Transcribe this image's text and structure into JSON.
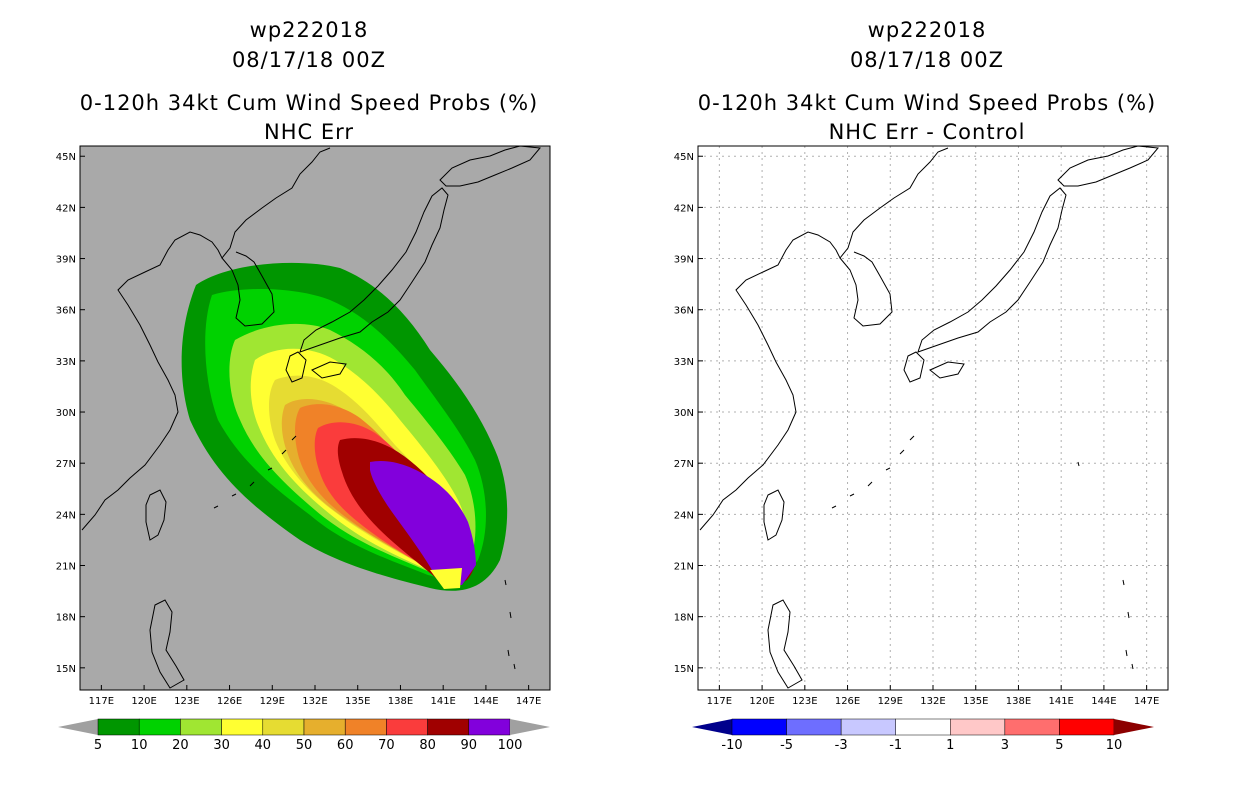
{
  "left": {
    "storm_id": "wp222018",
    "datetime": "08/17/18 00Z",
    "product": "0-120h 34kt Cum Wind Speed Probs (%)",
    "subtitle": "NHC Err",
    "lat_labels": [
      "45N",
      "42N",
      "39N",
      "36N",
      "33N",
      "30N",
      "27N",
      "24N",
      "21N",
      "18N",
      "15N"
    ],
    "lon_labels": [
      "117E",
      "120E",
      "123E",
      "126E",
      "129E",
      "132E",
      "135E",
      "138E",
      "141E",
      "144E",
      "147E"
    ],
    "colorbar": {
      "colors": [
        "#009600",
        "#00d200",
        "#a0e632",
        "#ffff32",
        "#e6dc32",
        "#e6af2d",
        "#f08228",
        "#fa3c3c",
        "#a00000",
        "#8200dc"
      ],
      "labels": [
        "5",
        "10",
        "20",
        "30",
        "40",
        "50",
        "60",
        "70",
        "80",
        "90",
        "100"
      ],
      "left_arrow_color": "#a0a0a0",
      "right_arrow_color": "#a0a0a0"
    },
    "map_background": "#a9a9a9"
  },
  "right": {
    "storm_id": "wp222018",
    "datetime": "08/17/18 00Z",
    "product": "0-120h 34kt Cum Wind Speed Probs (%)",
    "subtitle": "NHC Err - Control",
    "lat_labels": [
      "45N",
      "42N",
      "39N",
      "36N",
      "33N",
      "30N",
      "27N",
      "24N",
      "21N",
      "18N",
      "15N"
    ],
    "lon_labels": [
      "117E",
      "120E",
      "123E",
      "126E",
      "129E",
      "132E",
      "135E",
      "138E",
      "141E",
      "144E",
      "147E"
    ],
    "colorbar": {
      "colors": [
        "#0000ff",
        "#6e6eff",
        "#c8c8ff",
        "#ffffff",
        "#ffc8c8",
        "#ff6e6e",
        "#ff0000"
      ],
      "labels": [
        "-10",
        "-5",
        "-3",
        "-1",
        "1",
        "3",
        "5",
        "10"
      ],
      "left_arrow_color": "#00008c",
      "right_arrow_color": "#8c0000"
    },
    "map_background": "#ffffff"
  },
  "map_extent": {
    "lon_min": 115.5,
    "lon_max": 148.5,
    "lat_min": 13.7,
    "lat_max": 45.6
  }
}
